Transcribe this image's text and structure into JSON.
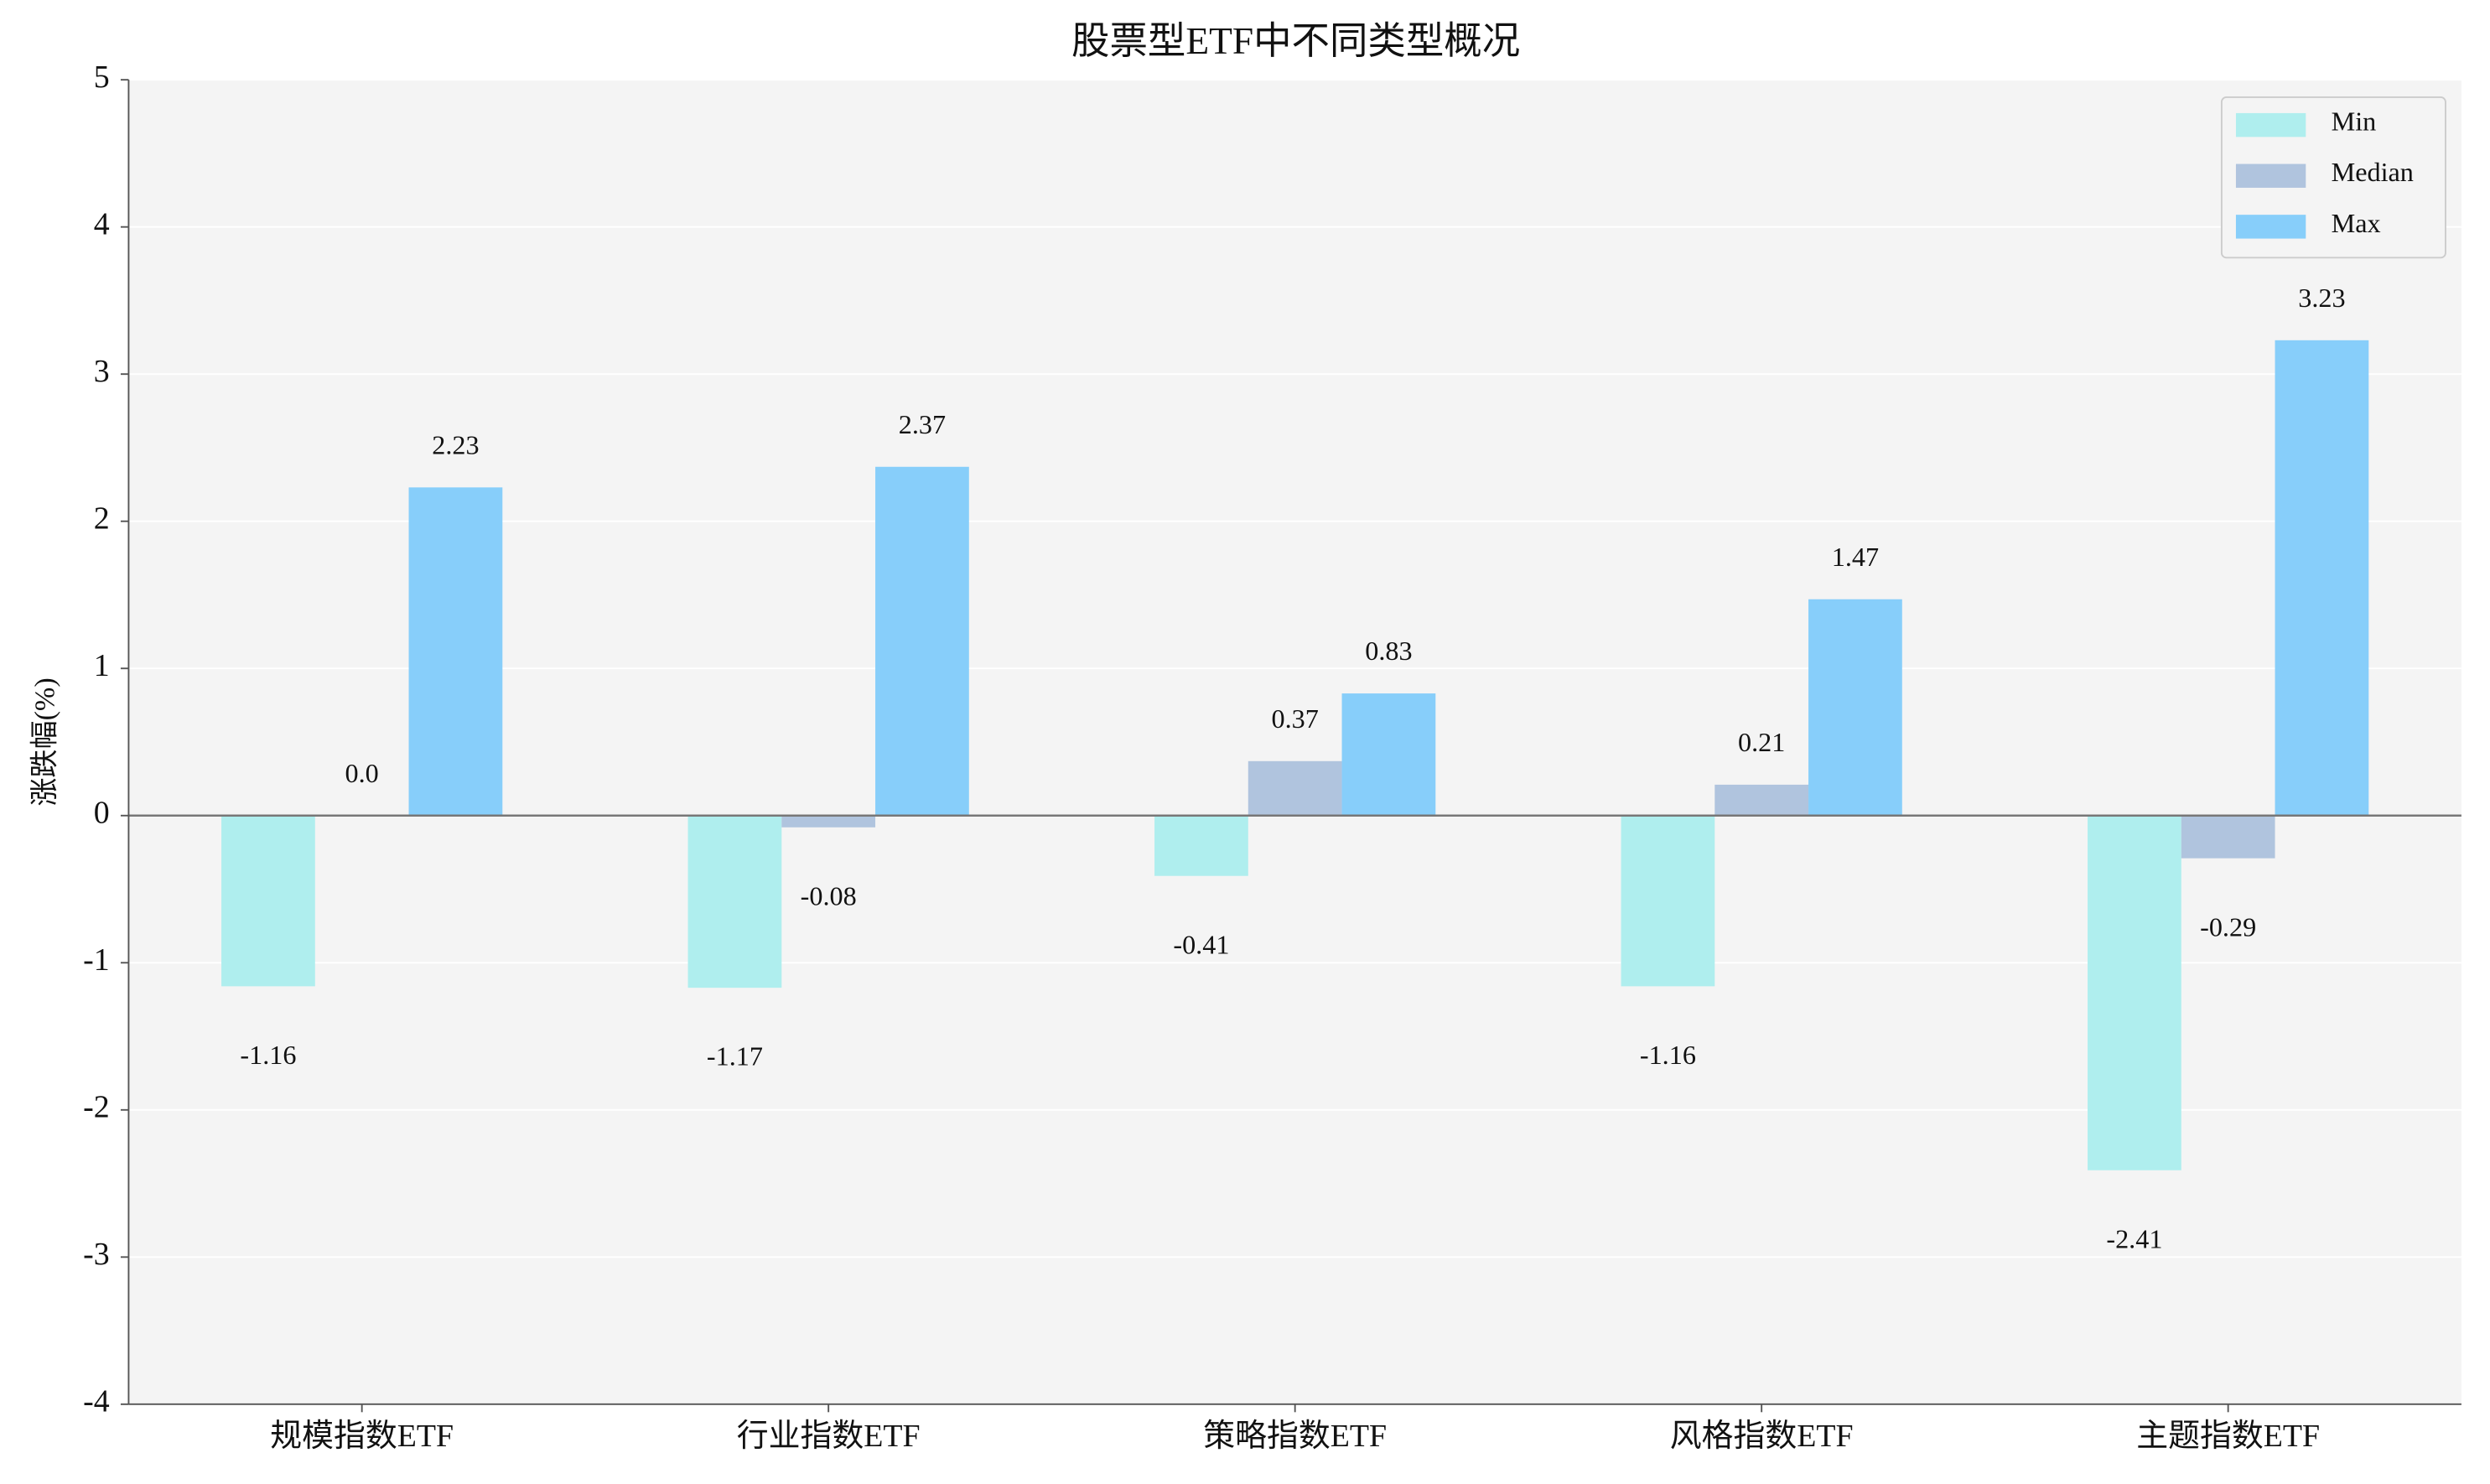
{
  "chart_data": {
    "type": "bar",
    "title": "股票型ETF中不同类型概况",
    "y_label": "涨跌幅(%)",
    "categories": [
      "规模指数ETF",
      "行业指数ETF",
      "策略指数ETF",
      "风格指数ETF",
      "主题指数ETF"
    ],
    "series": [
      {
        "name": "Min",
        "color": "#afeeee",
        "values": [
          -1.16,
          -1.17,
          -0.41,
          -1.16,
          -2.41
        ],
        "value_labels": [
          "-1.16",
          "-1.17",
          "-0.41",
          "-1.16",
          "-2.41"
        ]
      },
      {
        "name": "Median",
        "color": "#b0c4de",
        "values": [
          0,
          -0.08,
          0.37,
          0.21,
          -0.29
        ],
        "value_labels": [
          "0.0",
          "-0.08",
          "0.37",
          "0.21",
          "-0.29"
        ]
      },
      {
        "name": "Max",
        "color": "#87cefa",
        "values": [
          2.23,
          2.37,
          0.83,
          1.47,
          3.23
        ],
        "value_labels": [
          "2.23",
          "2.37",
          "0.83",
          "1.47",
          "3.23"
        ]
      }
    ],
    "ylim": [
      -4,
      5
    ],
    "yticks": [
      -4,
      -3,
      -2,
      -1,
      0,
      1,
      2,
      3,
      4,
      5
    ],
    "grid": true,
    "legend": "upper right"
  }
}
